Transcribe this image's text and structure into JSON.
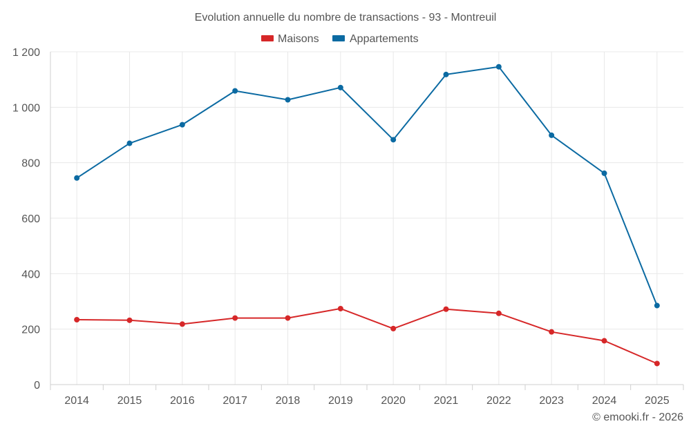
{
  "chart_data": {
    "type": "line",
    "title": "Evolution annuelle du nombre de transactions - 93 - Montreuil",
    "categories": [
      "2014",
      "2015",
      "2016",
      "2017",
      "2018",
      "2019",
      "2020",
      "2021",
      "2022",
      "2023",
      "2024",
      "2025"
    ],
    "series": [
      {
        "name": "Maisons",
        "color": "#d62728",
        "values": [
          234,
          232,
          218,
          240,
          240,
          274,
          202,
          272,
          257,
          190,
          158,
          76
        ]
      },
      {
        "name": "Appartements",
        "color": "#0b6aa2",
        "values": [
          745,
          870,
          937,
          1059,
          1027,
          1071,
          883,
          1118,
          1146,
          899,
          762,
          285
        ]
      }
    ],
    "ylim": [
      0,
      1200
    ],
    "yticks": [
      0,
      200,
      400,
      600,
      800,
      1000,
      1200
    ],
    "ytick_labels": [
      "0",
      "200",
      "400",
      "600",
      "800",
      "1 000",
      "1 200"
    ],
    "xlabel": "",
    "ylabel": "",
    "grid": true,
    "legend_position": "top-center"
  },
  "credit": "© emooki.fr - 2026"
}
